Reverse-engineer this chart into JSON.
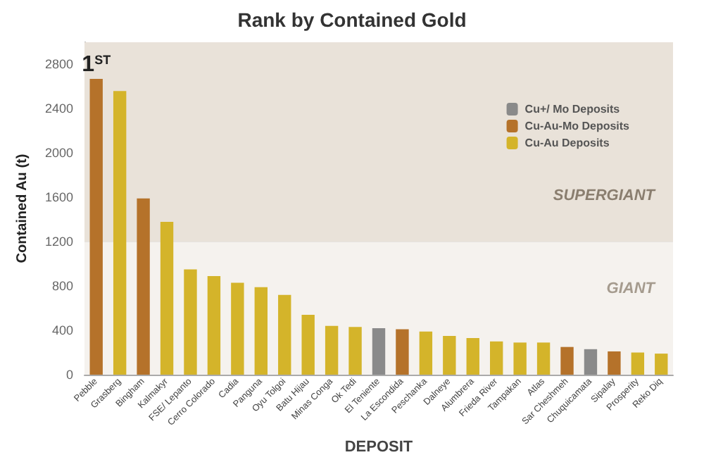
{
  "chart_data": {
    "type": "bar",
    "title": "Rank by Contained Gold",
    "xlabel": "DEPOSIT",
    "ylabel": "Contained Au (t)",
    "categories": [
      "Pebble",
      "Grasberg",
      "Bingham",
      "Kalmakyr",
      "FSE/ Lepanto",
      "Cerro Colorado",
      "Cadia",
      "Panguna",
      "Oyu Tolgoi",
      "Batu Hijau",
      "Minas Conga",
      "Ok Tedi",
      "El Teniente",
      "La Escondida",
      "Peschanka",
      "Dalneye",
      "Alumbrera",
      "Frieda River",
      "Tampakan",
      "Atlas",
      "Sar Cheshmeh",
      "Chuquicamata",
      "Sipalay",
      "Prosperity",
      "Reko Diq"
    ],
    "series": [
      {
        "name": "Cu+/ Mo Deposits",
        "color": "#8a8a8a",
        "values": [
          null,
          null,
          null,
          null,
          null,
          null,
          null,
          null,
          null,
          null,
          null,
          null,
          420,
          null,
          null,
          null,
          null,
          null,
          null,
          null,
          null,
          230,
          null,
          null,
          null
        ]
      },
      {
        "name": "Cu-Au-Mo Deposits",
        "color": "#b5722a",
        "values": [
          2670,
          null,
          1590,
          null,
          null,
          null,
          null,
          null,
          null,
          null,
          null,
          null,
          null,
          410,
          null,
          null,
          null,
          null,
          null,
          null,
          250,
          null,
          210,
          null,
          null
        ]
      },
      {
        "name": "Cu-Au Deposits",
        "color": "#d4b42a",
        "values": [
          null,
          2560,
          null,
          1380,
          950,
          890,
          830,
          790,
          720,
          540,
          440,
          430,
          null,
          null,
          390,
          350,
          330,
          300,
          290,
          290,
          null,
          null,
          null,
          200,
          190
        ]
      }
    ],
    "stacked": true,
    "ylim": [
      0,
      3000
    ],
    "yticks": [
      0,
      400,
      800,
      1200,
      1600,
      2000,
      2400,
      2800
    ],
    "bands": [
      {
        "axis": "y",
        "from": 1200,
        "to": 3000,
        "label": "SUPERGIANT",
        "color": "#e9e2d9"
      },
      {
        "axis": "y",
        "from": 0,
        "to": 1200,
        "label": "GIANT",
        "color": "#f5f2ee"
      }
    ],
    "annotations": [
      {
        "text": "1$^{ST}$",
        "x": "Pebble",
        "y": 2670
      }
    ],
    "grid": "y",
    "legend": "top right"
  }
}
